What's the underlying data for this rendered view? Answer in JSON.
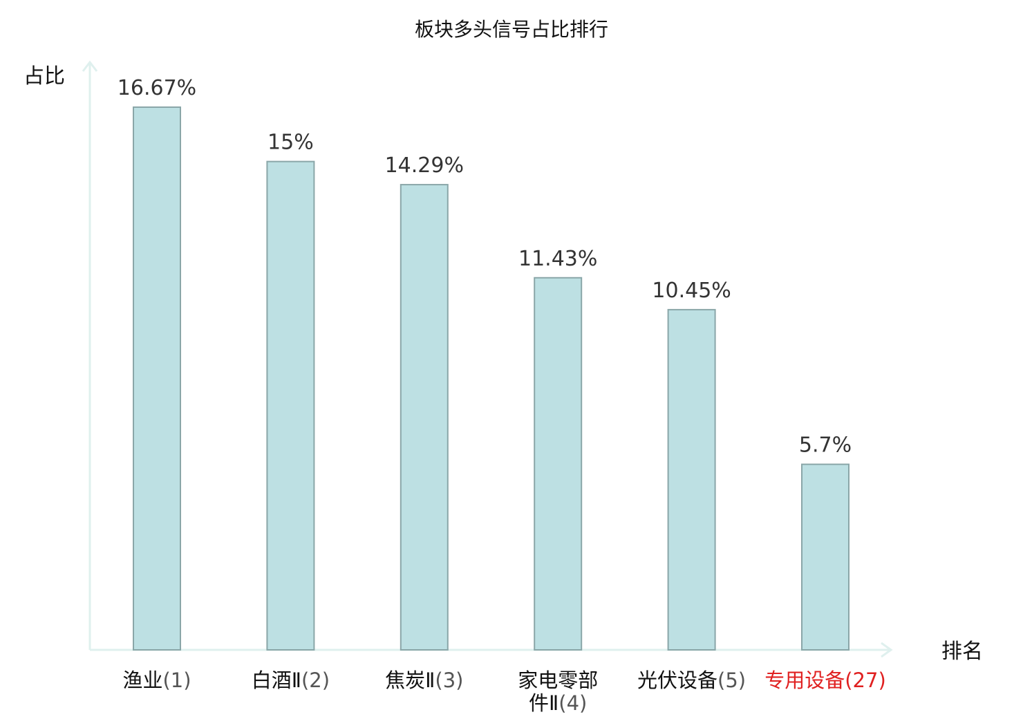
{
  "chart_data": {
    "type": "bar",
    "title": "板块多头信号占比排行",
    "ylabel": "占比",
    "xlabel": "排名",
    "ylim": [
      0,
      16.67
    ],
    "categories": [
      {
        "name": [
          "渔业"
        ],
        "rank": "(1)",
        "highlight": false
      },
      {
        "name": [
          "白酒Ⅱ"
        ],
        "rank": "(2)",
        "highlight": false
      },
      {
        "name": [
          "焦炭Ⅱ"
        ],
        "rank": "(3)",
        "highlight": false
      },
      {
        "name": [
          "家电零部",
          "件Ⅱ"
        ],
        "rank": "(4)",
        "highlight": false
      },
      {
        "name": [
          "光伏设备"
        ],
        "rank": "(5)",
        "highlight": false
      },
      {
        "name": [
          "专用设备"
        ],
        "rank": "(27)",
        "highlight": true
      }
    ],
    "values": [
      16.67,
      15,
      14.29,
      11.43,
      10.45,
      5.7
    ],
    "value_labels": [
      "16.67%",
      "15%",
      "14.29%",
      "11.43%",
      "10.45%",
      "5.7%"
    ],
    "grid": false,
    "legend": "none"
  },
  "colors": {
    "bar_fill": "#bde0e3",
    "bar_stroke": "#8aa6a8",
    "axis": "#dff0ee",
    "highlight": "#e02020"
  }
}
